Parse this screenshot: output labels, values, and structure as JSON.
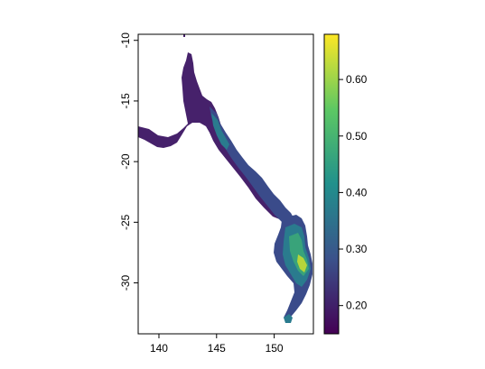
{
  "map": {
    "x_axis": {
      "ticks": [
        {
          "value": 140,
          "label": "140"
        },
        {
          "value": 145,
          "label": "145"
        },
        {
          "value": 150,
          "label": "150"
        }
      ]
    },
    "y_axis": {
      "ticks": [
        {
          "value": -10,
          "label": "-10"
        },
        {
          "value": -15,
          "label": "-15"
        },
        {
          "value": -20,
          "label": "-20"
        },
        {
          "value": -25,
          "label": "-25"
        },
        {
          "value": -30,
          "label": "-30"
        }
      ]
    },
    "colorbar": {
      "palette": "viridis",
      "min": 0.15,
      "max": 0.68,
      "ticks": [
        {
          "value": 0.2,
          "label": "0.20"
        },
        {
          "value": 0.3,
          "label": "0.30"
        },
        {
          "value": 0.4,
          "label": "0.40"
        },
        {
          "value": 0.5,
          "label": "0.50"
        },
        {
          "value": 0.6,
          "label": "0.60"
        }
      ],
      "stops": [
        "#440154",
        "#3b528b",
        "#21908c",
        "#5dc863",
        "#fde725"
      ]
    },
    "raster_colors": {
      "low": "#46216b",
      "mid_low": "#3a4b8a",
      "mid": "#2a7b8e",
      "mid_high": "#39a37a",
      "high": "#b6d63a"
    }
  }
}
